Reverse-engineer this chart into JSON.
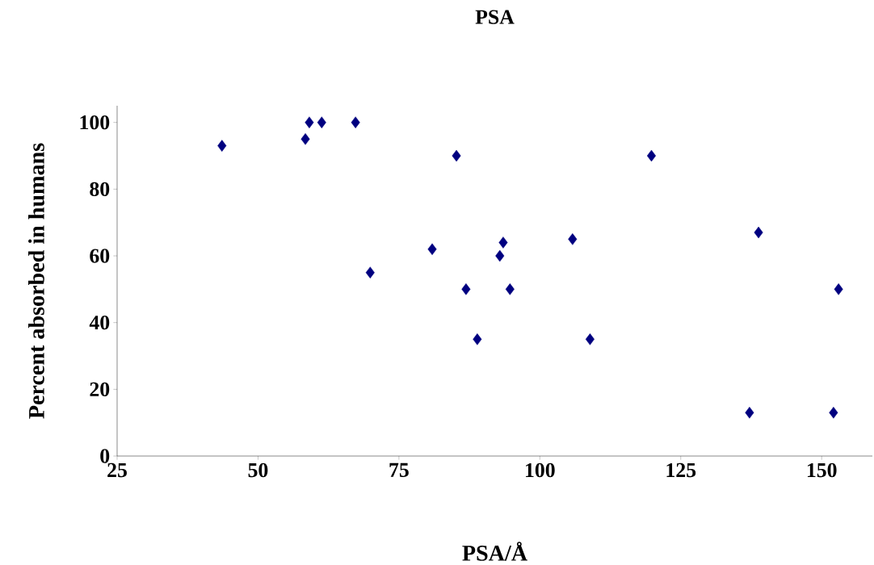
{
  "chart_data": {
    "type": "scatter",
    "title": "PSA",
    "xlabel": "PSA/Å",
    "ylabel": "Percent absorbed in humans",
    "xlim": [
      25,
      159
    ],
    "xticks": [
      25,
      50,
      75,
      100,
      125,
      150
    ],
    "ylim": [
      0,
      105
    ],
    "yticks": [
      0,
      20,
      40,
      60,
      80,
      100
    ],
    "marker": "diamond",
    "series": [
      {
        "color": "#000080",
        "x": [
          43.6,
          58.4,
          59.1,
          61.3,
          67.3,
          69.9,
          80.9,
          85.2,
          86.9,
          88.9,
          92.9,
          93.5,
          94.7,
          105.8,
          108.9,
          119.8,
          137.2,
          138.8,
          152.1,
          153.0
        ],
        "values": [
          93,
          95,
          100,
          100,
          100,
          55,
          62,
          90,
          50,
          35,
          60,
          64,
          50,
          65,
          35,
          90,
          13,
          67,
          13,
          50
        ]
      }
    ]
  }
}
